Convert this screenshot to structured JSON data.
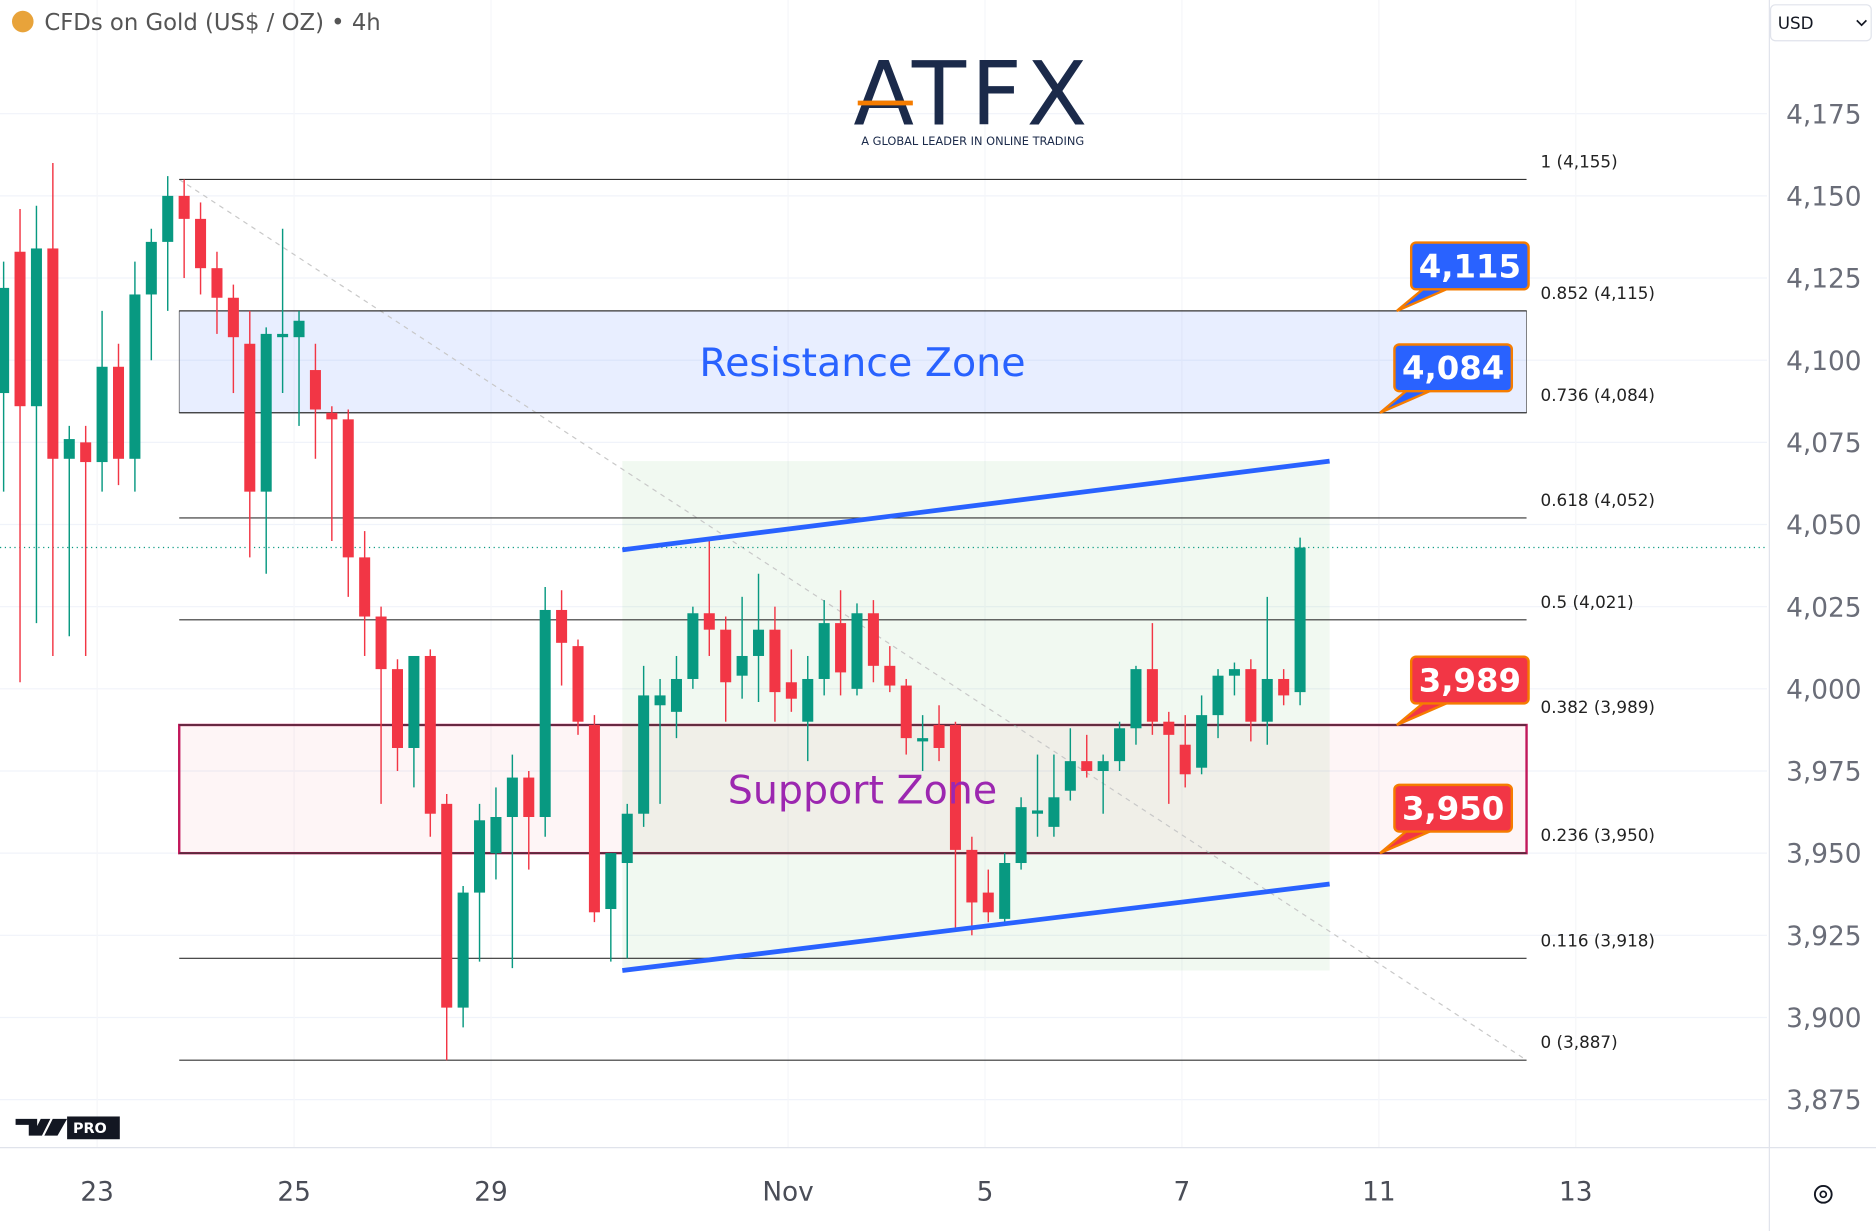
{
  "header": {
    "symbol": "CFDs on Gold (US$ / OZ) • 4h",
    "currency": "USD"
  },
  "logo": {
    "name": "ATFX",
    "tagline": "A GLOBAL LEADER IN ONLINE TRADING"
  },
  "badge": "PRO",
  "chart_data": {
    "type": "candlestick",
    "up_color": "#089981",
    "down_color": "#f23645",
    "x": [
      0,
      1,
      2,
      3,
      4,
      5,
      6,
      7,
      8,
      9,
      10,
      11,
      12,
      13,
      14,
      15,
      16,
      17,
      18,
      19,
      20,
      21,
      22,
      23,
      24,
      25,
      26,
      27,
      28,
      29,
      30,
      31,
      32,
      33,
      34,
      35,
      36,
      37,
      38,
      39,
      40,
      41,
      42,
      43,
      44,
      45,
      46,
      47,
      48,
      49,
      50,
      51,
      52,
      53,
      54,
      55,
      56,
      57,
      58,
      59,
      60,
      61,
      62,
      63,
      64,
      65,
      66,
      67,
      68,
      69,
      70,
      71,
      72,
      73,
      74,
      75,
      76,
      77,
      78,
      79
    ],
    "open": [
      4090,
      4133,
      4086,
      4134,
      4070,
      4075,
      4069,
      4098,
      4070,
      4120,
      4136,
      4150,
      4143,
      4128,
      4119,
      4105,
      4060,
      4107,
      4107,
      4097,
      4084,
      4082,
      4040,
      4022,
      4006,
      3982,
      4010,
      3965,
      3903,
      3938,
      3950,
      3961,
      3973,
      3961,
      4024,
      4013,
      3989,
      3933,
      3947,
      3962,
      3995,
      3993,
      4003,
      4023,
      4018,
      4004,
      4010,
      4018,
      4002,
      3990,
      4003,
      4020,
      4000,
      4023,
      4007,
      4001,
      3984,
      3989,
      3989,
      3951,
      3938,
      3930,
      3947,
      3962,
      3958,
      3969,
      3978,
      3975,
      3978,
      3988,
      4006,
      3990,
      3983,
      3976,
      3992,
      4004,
      4006,
      3990,
      4003,
      3999
    ],
    "high": [
      4130,
      4146,
      4147,
      4160,
      4080,
      4080,
      4115,
      4105,
      4130,
      4140,
      4156,
      4155,
      4148,
      4133,
      4123,
      4115,
      4110,
      4140,
      4115,
      4105,
      4086,
      4085,
      4048,
      4025,
      4009,
      4010,
      4012,
      3968,
      3940,
      3965,
      3970,
      3980,
      3975,
      4031,
      4030,
      4015,
      3992,
      3950,
      3965,
      4007,
      4003,
      4010,
      4025,
      4045,
      4022,
      4028,
      4035,
      4025,
      4012,
      4010,
      4027,
      4030,
      4026,
      4027,
      4013,
      4003,
      3992,
      3995,
      3990,
      3955,
      3945,
      3950,
      3967,
      3980,
      3980,
      3988,
      3986,
      3980,
      3990,
      4007,
      4020,
      3993,
      3992,
      3998,
      4006,
      4008,
      4009,
      4028,
      4006,
      4046
    ],
    "low": [
      4060,
      4002,
      4020,
      4010,
      4016,
      4010,
      4060,
      4062,
      4060,
      4100,
      4115,
      4125,
      4120,
      4108,
      4090,
      4040,
      4035,
      4090,
      4080,
      4070,
      4045,
      4028,
      4010,
      3965,
      3975,
      3970,
      3955,
      3887,
      3897,
      3917,
      3942,
      3915,
      3945,
      3955,
      4001,
      3986,
      3929,
      3917,
      3918,
      3958,
      3965,
      3985,
      4000,
      4010,
      3990,
      3997,
      3996,
      3990,
      3993,
      3978,
      3998,
      3998,
      3998,
      4002,
      3999,
      3980,
      3975,
      3978,
      3927,
      3925,
      3929,
      3928,
      3945,
      3955,
      3955,
      3966,
      3973,
      3962,
      3975,
      3983,
      3986,
      3965,
      3970,
      3974,
      3985,
      3998,
      3984,
      3983,
      3995,
      3995
    ],
    "close": [
      4122,
      4086,
      4134,
      4070,
      4076,
      4069,
      4098,
      4070,
      4120,
      4136,
      4150,
      4143,
      4128,
      4119,
      4107,
      4060,
      4108,
      4108,
      4112,
      4085,
      4082,
      4040,
      4022,
      4006,
      3982,
      4010,
      3962,
      3903,
      3938,
      3960,
      3961,
      3973,
      3961,
      4024,
      4014,
      3990,
      3932,
      3950,
      3962,
      3998,
      3998,
      4003,
      4023,
      4018,
      4002,
      4010,
      4018,
      3999,
      3997,
      4003,
      4020,
      4005,
      4023,
      4007,
      4001,
      3985,
      3985,
      3982,
      3951,
      3935,
      3932,
      3947,
      3964,
      3963,
      3967,
      3978,
      3975,
      3978,
      3988,
      4006,
      3990,
      3986,
      3974,
      3992,
      4004,
      4006,
      3990,
      4003,
      3998,
      4043
    ],
    "xlim": [
      -0.22,
      107.45
    ],
    "xticks": [
      {
        "value": 5.7,
        "label": "23"
      },
      {
        "value": 17.7,
        "label": "25"
      },
      {
        "value": 29.7,
        "label": "29"
      },
      {
        "value": 47.8,
        "label": "Nov"
      },
      {
        "value": 59.8,
        "label": "5"
      },
      {
        "value": 71.8,
        "label": "7"
      },
      {
        "value": 83.8,
        "label": "11"
      },
      {
        "value": 95.8,
        "label": "13"
      }
    ],
    "ylim": [
      3860.4,
      4209.6
    ],
    "yticks": [
      {
        "value": 3875,
        "label": "3,875"
      },
      {
        "value": 3900,
        "label": "3,900"
      },
      {
        "value": 3925,
        "label": "3,925"
      },
      {
        "value": 3950,
        "label": "3,950"
      },
      {
        "value": 3975,
        "label": "3,975"
      },
      {
        "value": 4000,
        "label": "4,000"
      },
      {
        "value": 4025,
        "label": "4,025"
      },
      {
        "value": 4050,
        "label": "4,050"
      },
      {
        "value": 4075,
        "label": "4,075"
      },
      {
        "value": 4100,
        "label": "4,100"
      },
      {
        "value": 4125,
        "label": "4,125"
      },
      {
        "value": 4150,
        "label": "4,150"
      },
      {
        "value": 4175,
        "label": "4,175"
      }
    ],
    "grid": true,
    "fib": {
      "x": [
        10.7,
        92.8
      ],
      "levels": [
        {
          "label": "1 (4,155)",
          "value": 4155
        },
        {
          "label": "0.852 (4,115)",
          "value": 4115
        },
        {
          "label": "0.736 (4,084)",
          "value": 4084
        },
        {
          "label": "0.618 (4,052)",
          "value": 4052
        },
        {
          "label": "0.5 (4,021)",
          "value": 4021
        },
        {
          "label": "0.382 (3,989)",
          "value": 3989
        },
        {
          "label": "0.236 (3,950)",
          "value": 3950
        },
        {
          "label": "0.116 (3,918)",
          "value": 3918
        },
        {
          "label": "0 (3,887)",
          "value": 3887
        }
      ]
    },
    "zones": [
      {
        "name": "Resistance Zone",
        "values": [
          4115,
          4084
        ],
        "value_labels": [
          "4,115",
          "4,084"
        ],
        "text_color": "#2962ff",
        "fill": "rgba(41,98,255,0.11)",
        "border": "#555555",
        "callout_color": "#2962ff"
      },
      {
        "name": "Support Zone",
        "values": [
          3989,
          3950
        ],
        "value_labels": [
          "3,989",
          "3,950"
        ],
        "text_color": "#9c27b0",
        "fill": "rgba(242,54,69,0.05)",
        "border": "#c2185b",
        "callout_color": "#f23645"
      }
    ],
    "channel": {
      "x": [
        37.7,
        80.8
      ],
      "upper": [
        4042.3,
        4069.3
      ],
      "lower": [
        3914.3,
        3940.6
      ],
      "color": "#2962ff"
    }
  }
}
